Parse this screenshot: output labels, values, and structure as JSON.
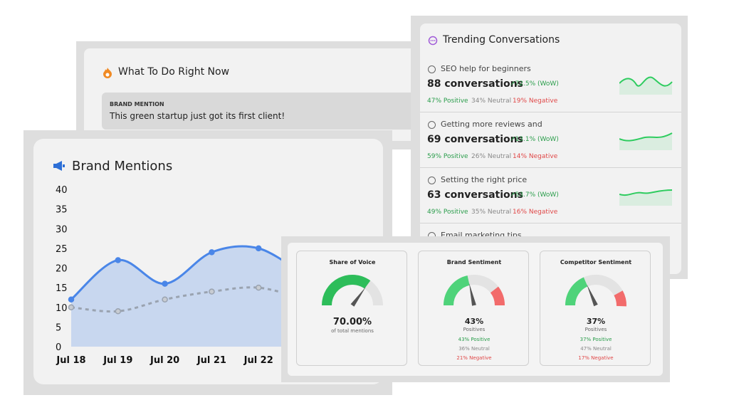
{
  "what_to_do": {
    "title": "What To Do Right Now",
    "item": {
      "tag": "BRAND MENTION",
      "text": "This green startup just got its first client!"
    }
  },
  "trending": {
    "title": "Trending Conversations",
    "items": [
      {
        "topic": "SEO help for beginners",
        "count": "88 conversations",
        "change": "↗72.5% (WoW)",
        "positive": "47% Positive",
        "neutral": "34% Neutral",
        "negative": "19% Negative"
      },
      {
        "topic": "Getting more reviews and",
        "count": "69 conversations",
        "change": "↗13.1% (WoW)",
        "positive": "59% Positive",
        "neutral": "26% Neutral",
        "negative": "14% Negative"
      },
      {
        "topic": "Setting the right price",
        "count": "63 conversations",
        "change": "↗53.7% (WoW)",
        "positive": "49% Positive",
        "neutral": "35% Neutral",
        "negative": "16% Negative"
      },
      {
        "topic": "Email marketing tips"
      }
    ]
  },
  "chart_data": {
    "type": "line",
    "title": "Brand Mentions",
    "categories": [
      "Jul 18",
      "Jul 19",
      "Jul 20",
      "Jul 21",
      "Jul 22",
      null
    ],
    "series": [
      {
        "color": "#4a86e8",
        "values": [
          12,
          22,
          16,
          24,
          25,
          18
        ]
      },
      {
        "color": "#9aa3b0",
        "values": [
          10,
          9,
          12,
          14,
          15,
          12
        ]
      }
    ],
    "ylim": [
      0,
      40
    ],
    "yticks": [
      0,
      5,
      10,
      15,
      20,
      25,
      30,
      35,
      40
    ]
  },
  "gauges": [
    {
      "title": "Share of Voice",
      "value": 70,
      "value_label": "70.00%",
      "caption": "of total mentions"
    },
    {
      "title": "Brand Sentiment",
      "value": 43,
      "value_label": "43%",
      "caption": "Positives",
      "breakdown": [
        {
          "value": 43,
          "label": "43% Positive"
        },
        {
          "value": 36,
          "label": "36% Neutral"
        },
        {
          "value": 21,
          "label": "21% Negative"
        }
      ]
    },
    {
      "title": "Competitor Sentiment",
      "value": 37,
      "value_label": "37%",
      "caption": "Positives",
      "breakdown": [
        {
          "value": 37,
          "label": "37% Positive"
        },
        {
          "value": 47,
          "label": "47% Neutral"
        },
        {
          "value": 17,
          "label": "17% Negative"
        }
      ]
    }
  ]
}
